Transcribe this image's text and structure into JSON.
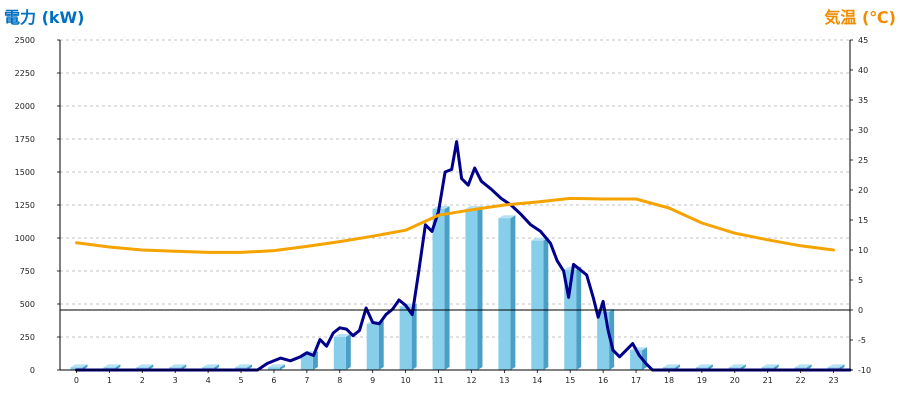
{
  "colors": {
    "left_axis_title": "#0070C0",
    "right_axis_title": "#F08C00",
    "bar_front": "#87CEEB",
    "bar_side": "#4A9FC7",
    "bar_top": "#B5E3F5",
    "power_line": "#00008B",
    "temp_line": "#F5A300",
    "grid": "#B0B0B0",
    "zero_line": "#000000"
  },
  "chart_data": {
    "type": "bar",
    "title_left": "電力 (kW)",
    "title_right": "気温 (℃)",
    "categories": [
      "0",
      "1",
      "2",
      "3",
      "4",
      "5",
      "6",
      "7",
      "8",
      "9",
      "10",
      "11",
      "12",
      "13",
      "14",
      "15",
      "16",
      "17",
      "18",
      "19",
      "20",
      "21",
      "22",
      "23"
    ],
    "left_axis": {
      "ylim": [
        0,
        2500
      ],
      "ticks": [
        "0",
        "250",
        "500",
        "750",
        "1000",
        "1250",
        "1500",
        "1750",
        "2000",
        "2250",
        "2500"
      ]
    },
    "right_axis": {
      "ylim": [
        -10,
        45
      ],
      "ticks": [
        "-10",
        "-5",
        "0",
        "5",
        "10",
        "15",
        "20",
        "25",
        "30",
        "35",
        "40",
        "45"
      ]
    },
    "grid": true,
    "series": [
      {
        "type": "bar",
        "axis": "left",
        "values": [
          20,
          20,
          20,
          20,
          20,
          20,
          20,
          120,
          250,
          350,
          480,
          1220,
          1220,
          1150,
          980,
          760,
          440,
          150,
          20,
          20,
          20,
          20,
          20,
          20
        ]
      },
      {
        "type": "line",
        "axis": "left",
        "x": [
          0,
          5.5,
          5.8,
          6.2,
          6.5,
          6.8,
          7.0,
          7.2,
          7.4,
          7.6,
          7.8,
          8.0,
          8.2,
          8.4,
          8.6,
          8.8,
          9.0,
          9.2,
          9.4,
          9.6,
          9.8,
          10.0,
          10.2,
          10.4,
          10.6,
          10.8,
          11.0,
          11.2,
          11.4,
          11.55,
          11.7,
          11.9,
          12.1,
          12.3,
          12.6,
          12.9,
          13.2,
          13.5,
          13.8,
          14.1,
          14.4,
          14.6,
          14.8,
          14.95,
          15.1,
          15.3,
          15.5,
          15.7,
          15.85,
          16.0,
          16.15,
          16.3,
          16.5,
          16.7,
          16.9,
          17.1,
          17.3,
          17.5,
          17.7,
          23.5
        ],
        "values": [
          0,
          0,
          50,
          90,
          70,
          100,
          130,
          110,
          230,
          180,
          280,
          320,
          310,
          260,
          300,
          470,
          360,
          350,
          420,
          460,
          530,
          490,
          420,
          750,
          1100,
          1050,
          1200,
          1500,
          1520,
          1730,
          1450,
          1400,
          1530,
          1430,
          1370,
          1300,
          1250,
          1180,
          1100,
          1050,
          960,
          830,
          750,
          550,
          800,
          760,
          720,
          550,
          400,
          520,
          300,
          150,
          100,
          150,
          200,
          110,
          50,
          0,
          0,
          0
        ]
      },
      {
        "type": "line",
        "axis": "right",
        "x": [
          0,
          1,
          2,
          3,
          4,
          5,
          6,
          7,
          8,
          9,
          10,
          11,
          12,
          13,
          14,
          15,
          16,
          17,
          18,
          19,
          20,
          21,
          22,
          23
        ],
        "values": [
          11.2,
          10.5,
          10.0,
          9.8,
          9.6,
          9.6,
          9.9,
          10.6,
          11.4,
          12.3,
          13.3,
          15.8,
          16.7,
          17.5,
          18.0,
          18.6,
          18.5,
          18.5,
          17.0,
          14.5,
          12.8,
          11.7,
          10.7,
          10.0
        ]
      }
    ]
  }
}
